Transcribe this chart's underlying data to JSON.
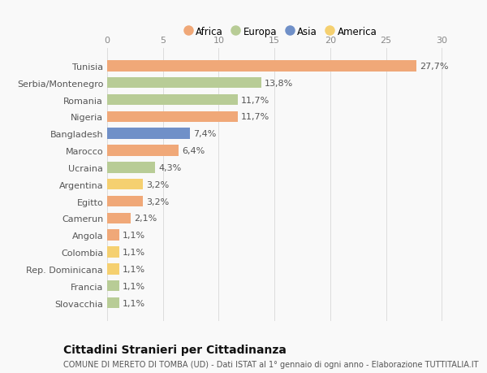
{
  "categories": [
    "Tunisia",
    "Serbia/Montenegro",
    "Romania",
    "Nigeria",
    "Bangladesh",
    "Marocco",
    "Ucraina",
    "Argentina",
    "Egitto",
    "Camerun",
    "Angola",
    "Colombia",
    "Rep. Dominicana",
    "Francia",
    "Slovacchia"
  ],
  "values": [
    27.7,
    13.8,
    11.7,
    11.7,
    7.4,
    6.4,
    4.3,
    3.2,
    3.2,
    2.1,
    1.1,
    1.1,
    1.1,
    1.1,
    1.1
  ],
  "labels": [
    "27,7%",
    "13,8%",
    "11,7%",
    "11,7%",
    "7,4%",
    "6,4%",
    "4,3%",
    "3,2%",
    "3,2%",
    "2,1%",
    "1,1%",
    "1,1%",
    "1,1%",
    "1,1%",
    "1,1%"
  ],
  "colors": [
    "#f0a878",
    "#b8cc96",
    "#b8cc96",
    "#f0a878",
    "#7090c8",
    "#f0a878",
    "#b8cc96",
    "#f5d070",
    "#f0a878",
    "#f0a878",
    "#f0a878",
    "#f5d070",
    "#f5d070",
    "#b8cc96",
    "#b8cc96"
  ],
  "legend_labels": [
    "Africa",
    "Europa",
    "Asia",
    "America"
  ],
  "legend_colors": [
    "#f0a878",
    "#b8cc96",
    "#7090c8",
    "#f5d070"
  ],
  "title": "Cittadini Stranieri per Cittadinanza",
  "subtitle": "COMUNE DI MERETO DI TOMBA (UD) - Dati ISTAT al 1° gennaio di ogni anno - Elaborazione TUTTITALIA.IT",
  "xlim": [
    0,
    31
  ],
  "xticks": [
    0,
    5,
    10,
    15,
    20,
    25,
    30
  ],
  "background_color": "#f9f9f9",
  "bar_height": 0.65,
  "title_fontsize": 10,
  "subtitle_fontsize": 7,
  "tick_fontsize": 8,
  "label_fontsize": 8,
  "legend_fontsize": 8.5
}
